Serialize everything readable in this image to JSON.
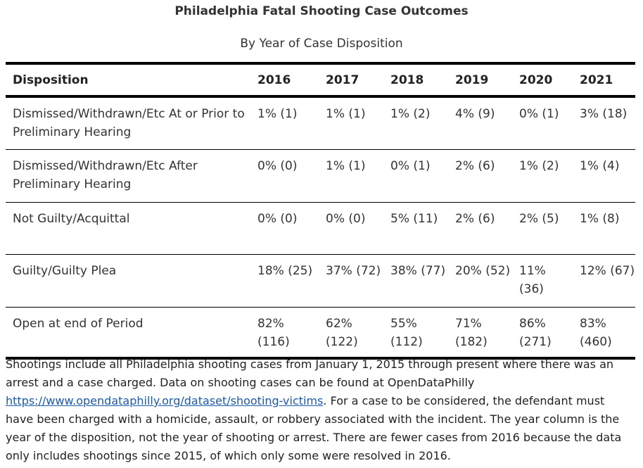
{
  "title": "Philadelphia Fatal Shooting Case Outcomes",
  "subtitle": "By Year of Case Disposition",
  "table": {
    "headers": [
      "Disposition",
      "2016",
      "2017",
      "2018",
      "2019",
      "2020",
      "2021"
    ],
    "rows": [
      [
        "Dismissed/Withdrawn/Etc At or Prior to Preliminary Hearing",
        "1% (1)",
        "1% (1)",
        "1% (2)",
        "4% (9)",
        "0% (1)",
        "3% (18)"
      ],
      [
        "Dismissed/Withdrawn/Etc After Preliminary Hearing",
        "0% (0)",
        "1% (1)",
        "0% (1)",
        "2% (6)",
        "1% (2)",
        "1% (4)"
      ],
      [
        "Not Guilty/Acquittal",
        "0% (0)",
        "0% (0)",
        "5% (11)",
        "2% (6)",
        "2% (5)",
        "1% (8)"
      ],
      [
        "Guilty/Guilty Plea",
        "18% (25)",
        "37% (72)",
        "38% (77)",
        "20% (52)",
        "11% (36)",
        "12% (67)"
      ],
      [
        "Open at end of Period",
        "82% (116)",
        "62% (122)",
        "55% (112)",
        "71% (182)",
        "86% (271)",
        "83% (460)"
      ]
    ]
  },
  "notes": {
    "text_before_link": "Shootings include all Philadelphia shooting cases from January 1, 2015 through present where there was an arrest and a case charged. Data on shooting cases can be found at OpenDataPhilly ",
    "link_text": "https://www.opendataphilly.org/dataset/shooting-victims",
    "text_after_link": ". For a case to be considered, the defendant must have been charged with a homicide, assault, or robbery associated with the incident. The year column is the year of the disposition, not the year of shooting or arrest. There are fewer cases from 2016 because the data only includes shootings since 2015, of which only some were resolved in 2016."
  }
}
